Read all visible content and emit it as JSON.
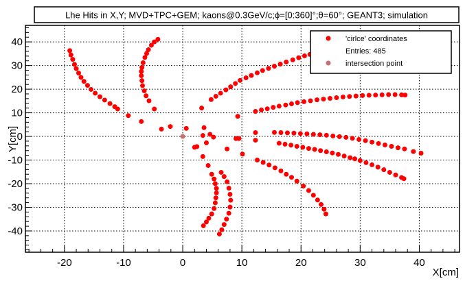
{
  "chart_data": {
    "type": "scatter",
    "title": "Lhe Hits in X,Y; MVD+TPC+GEM; kaons@0.3GeV/c;ϕ=[0:360]°;θ=60°; GEANT3; simulation",
    "xlabel": "X[cm]",
    "ylabel": "Y[cm]",
    "xlim": [
      -26.6,
      46.8
    ],
    "ylim": [
      -49,
      47
    ],
    "xticks": [
      -20,
      -10,
      0,
      10,
      20,
      30,
      40
    ],
    "yticks": [
      -40,
      -30,
      -20,
      -10,
      0,
      10,
      20,
      30,
      40
    ],
    "minor_tick_step": 2,
    "grid": true,
    "legend": {
      "placement": "top-right",
      "entries": [
        "'cirlce' coordinates",
        "Entries:  485",
        "intersection point"
      ]
    },
    "series": [
      {
        "name": "'cirlce' coordinates",
        "color": "#ff0000",
        "entries": 485,
        "points": [
          [
            -19.1,
            36.3
          ],
          [
            -18.9,
            34.5
          ],
          [
            -18.6,
            32.6
          ],
          [
            -18.3,
            30.5
          ],
          [
            -18.0,
            28.7
          ],
          [
            -17.6,
            26.8
          ],
          [
            -17.2,
            25.0
          ],
          [
            -16.7,
            23.3
          ],
          [
            -16.1,
            21.6
          ],
          [
            -15.5,
            19.9
          ],
          [
            -14.8,
            18.3
          ],
          [
            -14.0,
            16.8
          ],
          [
            -13.2,
            15.4
          ],
          [
            -12.3,
            13.9
          ],
          [
            -11.5,
            12.6
          ],
          [
            -11.0,
            11.6
          ],
          [
            -4.2,
            41.1
          ],
          [
            -4.8,
            40.0
          ],
          [
            -5.3,
            38.6
          ],
          [
            -5.8,
            36.7
          ],
          [
            -6.1,
            35.1
          ],
          [
            -6.4,
            33.4
          ],
          [
            -6.7,
            31.2
          ],
          [
            -6.9,
            29.2
          ],
          [
            -7.0,
            27.5
          ],
          [
            -7.0,
            25.7
          ],
          [
            -6.9,
            23.6
          ],
          [
            -6.8,
            21.5
          ],
          [
            -6.5,
            19.3
          ],
          [
            -6.2,
            17.2
          ],
          [
            -5.7,
            15.1
          ],
          [
            4.9,
            -16.0
          ],
          [
            5.3,
            -18.0
          ],
          [
            5.5,
            -20.0
          ],
          [
            5.7,
            -22.0
          ],
          [
            5.7,
            -23.9
          ],
          [
            5.6,
            -26.0
          ],
          [
            5.5,
            -28.1
          ],
          [
            5.3,
            -30.5
          ],
          [
            4.9,
            -32.8
          ],
          [
            4.4,
            -34.6
          ],
          [
            4.0,
            -36.2
          ],
          [
            3.5,
            -37.8
          ],
          [
            6.5,
            -15.2
          ],
          [
            7.0,
            -17.0
          ],
          [
            7.5,
            -19.2
          ],
          [
            7.8,
            -21.9
          ],
          [
            8.0,
            -24.5
          ],
          [
            8.1,
            -27.0
          ],
          [
            8.0,
            -29.9
          ],
          [
            7.8,
            -32.5
          ],
          [
            7.4,
            -35.0
          ],
          [
            7.0,
            -37.3
          ],
          [
            6.6,
            -39.5
          ],
          [
            6.2,
            -41.3
          ],
          [
            4.8,
            15.6
          ],
          [
            5.6,
            17.0
          ],
          [
            6.4,
            18.3
          ],
          [
            7.3,
            19.7
          ],
          [
            8.1,
            21.0
          ],
          [
            8.9,
            22.4
          ],
          [
            9.7,
            23.7
          ],
          [
            10.7,
            24.8
          ],
          [
            11.6,
            25.8
          ],
          [
            12.6,
            26.9
          ],
          [
            13.5,
            27.9
          ],
          [
            14.5,
            28.8
          ],
          [
            15.5,
            29.7
          ],
          [
            16.5,
            30.6
          ],
          [
            17.5,
            31.5
          ],
          [
            18.6,
            32.4
          ],
          [
            19.6,
            33.3
          ],
          [
            20.6,
            34.1
          ],
          [
            21.5,
            34.7
          ],
          [
            12.3,
            10.6
          ],
          [
            13.3,
            11.2
          ],
          [
            14.3,
            11.7
          ],
          [
            15.3,
            12.3
          ],
          [
            16.3,
            12.8
          ],
          [
            17.4,
            13.3
          ],
          [
            18.4,
            13.8
          ],
          [
            19.4,
            14.3
          ],
          [
            20.5,
            14.7
          ],
          [
            21.6,
            15.1
          ],
          [
            22.7,
            15.5
          ],
          [
            23.8,
            15.8
          ],
          [
            24.9,
            16.1
          ],
          [
            26.0,
            16.4
          ],
          [
            27.1,
            16.7
          ],
          [
            28.2,
            16.9
          ],
          [
            29.3,
            17.1
          ],
          [
            30.4,
            17.3
          ],
          [
            31.5,
            17.4
          ],
          [
            32.6,
            17.5
          ],
          [
            33.7,
            17.6
          ],
          [
            34.8,
            17.7
          ],
          [
            35.9,
            17.7
          ],
          [
            37.0,
            17.6
          ],
          [
            37.6,
            17.5
          ],
          [
            15.5,
            1.7
          ],
          [
            16.6,
            1.6
          ],
          [
            17.7,
            1.5
          ],
          [
            18.8,
            1.4
          ],
          [
            19.9,
            1.2
          ],
          [
            21.0,
            1.1
          ],
          [
            22.1,
            0.9
          ],
          [
            23.2,
            0.7
          ],
          [
            24.3,
            0.5
          ],
          [
            25.4,
            0.2
          ],
          [
            26.5,
            -0.1
          ],
          [
            27.6,
            -0.4
          ],
          [
            28.7,
            -0.8
          ],
          [
            29.8,
            -1.3
          ],
          [
            30.9,
            -1.8
          ],
          [
            32.0,
            -2.4
          ],
          [
            33.1,
            -3.0
          ],
          [
            34.2,
            -3.6
          ],
          [
            35.3,
            -4.2
          ],
          [
            36.4,
            -4.8
          ],
          [
            37.5,
            -5.3
          ],
          [
            39.0,
            -6.4
          ],
          [
            40.3,
            -7.1
          ],
          [
            16.3,
            -2.9
          ],
          [
            17.3,
            -3.3
          ],
          [
            18.3,
            -3.7
          ],
          [
            19.3,
            -4.2
          ],
          [
            20.3,
            -4.6
          ],
          [
            21.3,
            -5.1
          ],
          [
            22.3,
            -5.5
          ],
          [
            23.3,
            -6.0
          ],
          [
            24.3,
            -6.5
          ],
          [
            25.3,
            -7.0
          ],
          [
            26.3,
            -7.6
          ],
          [
            27.3,
            -8.3
          ],
          [
            28.3,
            -9.0
          ],
          [
            29.1,
            -9.5
          ],
          [
            30.0,
            -10.2
          ],
          [
            31.0,
            -11.1
          ],
          [
            32.0,
            -12.0
          ],
          [
            33.0,
            -13.0
          ],
          [
            34.0,
            -14.1
          ],
          [
            35.0,
            -15.2
          ],
          [
            36.0,
            -16.3
          ],
          [
            37.0,
            -17.4
          ],
          [
            37.4,
            -17.9
          ],
          [
            12.6,
            -10.0
          ],
          [
            13.6,
            -11.0
          ],
          [
            14.6,
            -12.1
          ],
          [
            15.6,
            -13.3
          ],
          [
            16.6,
            -14.6
          ],
          [
            17.5,
            -16.0
          ],
          [
            18.4,
            -17.3
          ],
          [
            19.3,
            -18.9
          ],
          [
            20.4,
            -21.0
          ],
          [
            21.3,
            -22.9
          ],
          [
            22.1,
            -24.9
          ],
          [
            22.8,
            -26.9
          ],
          [
            23.4,
            -28.8
          ],
          [
            23.9,
            -30.8
          ],
          [
            24.2,
            -32.8
          ],
          [
            -9.2,
            8.8
          ],
          [
            -7.0,
            6.3
          ],
          [
            -4.8,
            11.6
          ],
          [
            -3.6,
            3.1
          ],
          [
            -2.1,
            4.2
          ],
          [
            0.6,
            3.4
          ],
          [
            3.2,
            12.0
          ],
          [
            3.6,
            3.7
          ],
          [
            3.4,
            0.4
          ],
          [
            4.6,
            0.9
          ],
          [
            5.2,
            -0.3
          ],
          [
            4.0,
            -2.7
          ],
          [
            2.0,
            -4.6
          ],
          [
            2.4,
            -4.3
          ],
          [
            3.4,
            -8.5
          ],
          [
            4.3,
            -12.3
          ],
          [
            7.5,
            -5.3
          ],
          [
            9.3,
            8.5
          ],
          [
            9.0,
            -0.9
          ],
          [
            9.5,
            -0.9
          ],
          [
            10.1,
            -7.5
          ],
          [
            12.3,
            1.6
          ],
          [
            12.3,
            -1.6
          ]
        ]
      },
      {
        "name": "intersection point",
        "color": "#c87070",
        "points": [
          [
            0,
            0
          ]
        ]
      }
    ]
  }
}
